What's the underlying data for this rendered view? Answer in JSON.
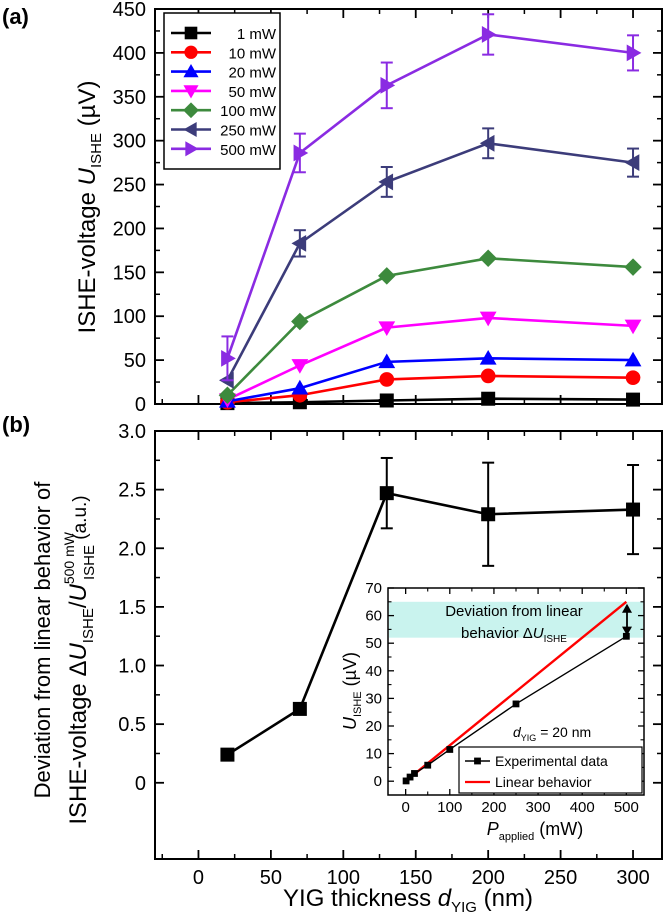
{
  "chart_data": [
    {
      "panel_label": "(a)",
      "type": "line",
      "ylabel": "ISHE-voltage",
      "ylabel_sym": "U",
      "ylabel_sub": "ISHE",
      "ylabel_unit": "(µV)",
      "xlim": [
        -30,
        320
      ],
      "ylim": [
        0,
        450
      ],
      "x_ticks": [
        0,
        50,
        100,
        150,
        200,
        250,
        300
      ],
      "y_ticks": [
        0,
        50,
        100,
        150,
        200,
        250,
        300,
        350,
        400,
        450
      ],
      "y_tick_labels": [
        "0",
        "50",
        "100",
        "150",
        "200",
        "250",
        "300",
        "350",
        "400",
        "450"
      ],
      "x": [
        20,
        70,
        130,
        200,
        300
      ],
      "legend_position": "top-left",
      "series": [
        {
          "name": "1 mW",
          "color": "#000000",
          "marker": "square",
          "values": [
            1,
            2,
            4,
            6,
            5
          ],
          "errors": [
            0,
            0,
            0,
            0,
            0
          ]
        },
        {
          "name": "10 mW",
          "color": "#ff0000",
          "marker": "circle",
          "values": [
            2,
            10,
            28,
            32,
            30
          ],
          "errors": [
            0,
            0,
            0,
            0,
            0
          ]
        },
        {
          "name": "20 mW",
          "color": "#0000ff",
          "marker": "triangle-up",
          "values": [
            3,
            18,
            48,
            52,
            50
          ],
          "errors": [
            0,
            0,
            0,
            0,
            0
          ]
        },
        {
          "name": "50 mW",
          "color": "#ff00ff",
          "marker": "triangle-down",
          "values": [
            5,
            44,
            87,
            98,
            89
          ],
          "errors": [
            0,
            0,
            0,
            0,
            0
          ]
        },
        {
          "name": "100 mW",
          "color": "#3d8a3d",
          "marker": "diamond",
          "values": [
            10,
            94,
            146,
            166,
            156
          ],
          "errors": [
            0,
            0,
            0,
            0,
            0
          ]
        },
        {
          "name": "250 mW",
          "color": "#3c3c7a",
          "marker": "triangle-left",
          "values": [
            27,
            183,
            253,
            297,
            275
          ],
          "errors": [
            0,
            15,
            17,
            17,
            16
          ]
        },
        {
          "name": "500 mW",
          "color": "#8a2be2",
          "marker": "triangle-right",
          "values": [
            52,
            286,
            363,
            421,
            400
          ],
          "errors": [
            25,
            22,
            26,
            23,
            20
          ]
        }
      ]
    },
    {
      "panel_label": "(b)",
      "type": "line",
      "ylabel_line1": "Deviation from linear behavior of",
      "ylabel_line2_prefix": "ISHE-voltage Δ",
      "ylabel_sym": "U",
      "ylabel_sub": "ISHE",
      "ylabel_sup": "500 mW",
      "ylabel_unit": "(a.u.)",
      "xlabel_prefix": "YIG thickness ",
      "xlabel_sym": "d",
      "xlabel_sub": "YIG",
      "xlabel_unit": " (nm)",
      "xlim": [
        -30,
        320
      ],
      "ylim": [
        -0.65,
        3.0
      ],
      "x_ticks": [
        0,
        50,
        100,
        150,
        200,
        250,
        300
      ],
      "x_tick_labels": [
        "0",
        "50",
        "100",
        "150",
        "200",
        "250",
        "300"
      ],
      "y_ticks": [
        0,
        0.5,
        1.0,
        1.5,
        2.0,
        2.5,
        3.0
      ],
      "y_tick_labels": [
        "0",
        "0.5",
        "1.0",
        "1.5",
        "2.0",
        "2.5",
        "3.0"
      ],
      "x": [
        20,
        70,
        130,
        200,
        300
      ],
      "values": [
        0.24,
        0.63,
        2.47,
        2.29,
        2.33
      ],
      "errors": [
        0,
        0,
        0.3,
        0.44,
        0.38
      ],
      "inset": {
        "type": "line",
        "xlim": [
          -40,
          540
        ],
        "ylim": [
          -5,
          70
        ],
        "x_ticks": [
          0,
          100,
          200,
          300,
          400,
          500
        ],
        "x_tick_labels": [
          "0",
          "100",
          "200",
          "300",
          "400",
          "500"
        ],
        "y_ticks": [
          0,
          10,
          20,
          30,
          40,
          50,
          60,
          70
        ],
        "y_tick_labels": [
          "0",
          "10",
          "20",
          "30",
          "40",
          "50",
          "60",
          "70"
        ],
        "xlabel_sym": "P",
        "xlabel_sub": "applied",
        "xlabel_unit": " (mW)",
        "ylabel_sym": "U",
        "ylabel_sub": "ISHE",
        "ylabel_unit": " (µV)",
        "annotation_line1": "Deviation from linear",
        "annotation_line2_prefix": "behavior Δ",
        "annotation_sym": "U",
        "annotation_sub": "ISHE",
        "thickness_sym": "d",
        "thickness_sub": "YIG",
        "thickness_value": " = 20 nm",
        "band_range": [
          52,
          65
        ],
        "band_color": "#c9f3ee",
        "series": [
          {
            "name": "Experimental data",
            "color": "#000000",
            "marker": "square",
            "x": [
              1,
              10,
              20,
              50,
              100,
              250,
              500
            ],
            "y": [
              0.1,
              1.5,
              2.8,
              5.8,
              11.5,
              28,
              52.5
            ]
          },
          {
            "name": "Linear behavior",
            "color": "#ff0000",
            "marker": "none",
            "x": [
              0,
              500
            ],
            "y": [
              0,
              65
            ]
          }
        ]
      }
    }
  ]
}
